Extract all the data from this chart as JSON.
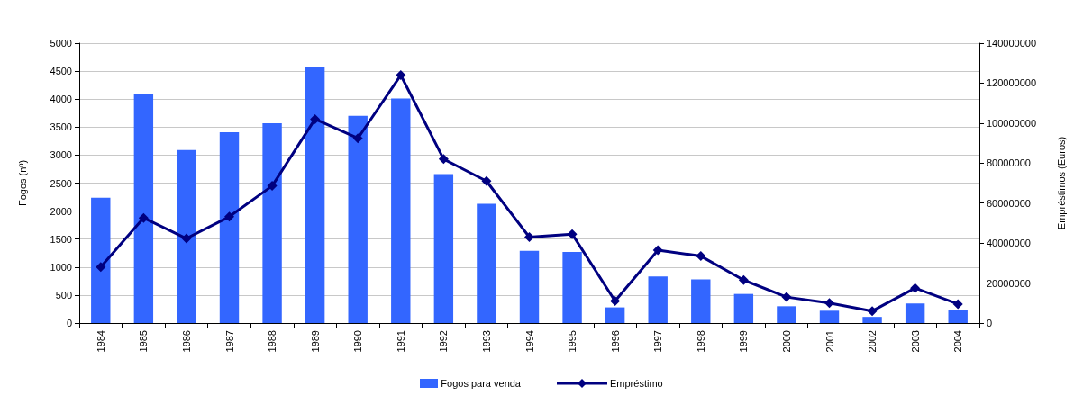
{
  "chart_data": {
    "type": "bar",
    "ylabel": "Fogos (nº)",
    "y2label": "Empréstimos (Euros)",
    "categories": [
      "1984",
      "1985",
      "1986",
      "1987",
      "1988",
      "1989",
      "1990",
      "1991",
      "1992",
      "1993",
      "1994",
      "1995",
      "1996",
      "1997",
      "1998",
      "1999",
      "2000",
      "2001",
      "2002",
      "2003",
      "2004"
    ],
    "series": [
      {
        "name": "Fogos para venda",
        "color": "#3366ff",
        "values": [
          2240,
          4100,
          3090,
          3410,
          3570,
          4580,
          3700,
          4010,
          2660,
          2130,
          1290,
          1270,
          280,
          830,
          780,
          520,
          300,
          220,
          110,
          350,
          230
        ]
      },
      {
        "name": "Empréstimo",
        "type": "line",
        "axis": "y2",
        "color": "#000080",
        "marker": "diamond",
        "values": [
          28000000,
          52600000,
          42300000,
          53200000,
          68600000,
          102000000,
          92400000,
          124000000,
          82000000,
          71000000,
          43000000,
          44500000,
          11000000,
          36500000,
          33500000,
          21500000,
          13000000,
          10000000,
          6000000,
          17500000,
          9500000
        ]
      }
    ],
    "ylim": [
      0,
      5000
    ],
    "yticks": [
      0,
      500,
      1000,
      1500,
      2000,
      2500,
      3000,
      3500,
      4000,
      4500,
      5000
    ],
    "y2lim": [
      0,
      140000000
    ],
    "y2ticks": [
      0,
      20000000,
      40000000,
      60000000,
      80000000,
      100000000,
      120000000,
      140000000
    ],
    "grid": "y",
    "legend": "bottom"
  }
}
